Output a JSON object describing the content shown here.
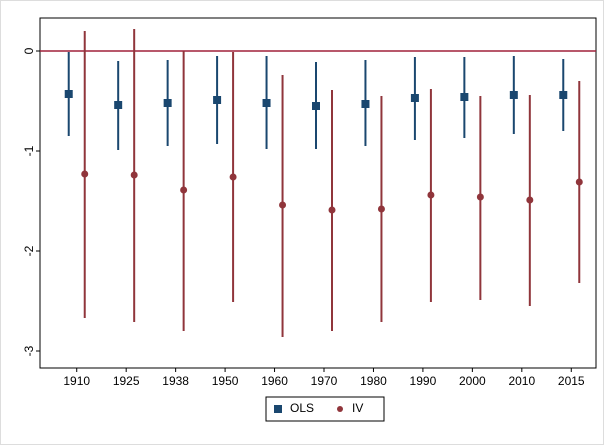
{
  "chart_data": {
    "type": "errorbar",
    "categories": [
      "1910",
      "1925",
      "1938",
      "1950",
      "1960",
      "1970",
      "1980",
      "1990",
      "2000",
      "2010",
      "2015"
    ],
    "series": [
      {
        "name": "OLS",
        "color": "#1a476f",
        "marker": "square",
        "values": [
          -0.43,
          -0.54,
          -0.52,
          -0.49,
          -0.52,
          -0.55,
          -0.53,
          -0.47,
          -0.46,
          -0.44,
          -0.44
        ],
        "lower": [
          -0.85,
          -0.99,
          -0.95,
          -0.93,
          -0.98,
          -0.98,
          -0.95,
          -0.89,
          -0.87,
          -0.83,
          -0.8
        ],
        "upper": [
          -0.01,
          -0.1,
          -0.09,
          -0.05,
          -0.05,
          -0.11,
          -0.09,
          -0.06,
          -0.06,
          -0.05,
          -0.08
        ]
      },
      {
        "name": "IV",
        "color": "#90353b",
        "marker": "circle",
        "values": [
          -1.23,
          -1.24,
          -1.39,
          -1.26,
          -1.54,
          -1.59,
          -1.58,
          -1.44,
          -1.46,
          -1.49,
          -1.31
        ],
        "lower": [
          -2.67,
          -2.71,
          -2.8,
          -2.51,
          -2.86,
          -2.8,
          -2.71,
          -2.51,
          -2.49,
          -2.55,
          -2.32
        ],
        "upper": [
          0.2,
          0.22,
          0.0,
          -0.01,
          -0.24,
          -0.39,
          -0.45,
          -0.38,
          -0.45,
          -0.44,
          -0.3
        ]
      }
    ],
    "hline": 0,
    "hline_color": "#a0203a",
    "ylim": [
      -3.17,
      0.33
    ],
    "yticks": [
      0,
      -1,
      -2,
      -3
    ],
    "legend": "bottom"
  }
}
